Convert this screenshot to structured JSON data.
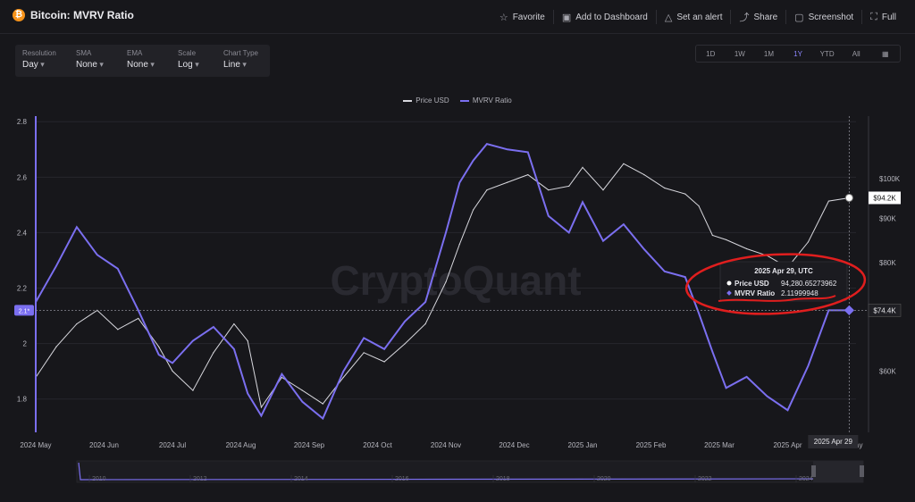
{
  "header": {
    "title": "Bitcoin: MVRV Ratio",
    "btc_glyph": "₿",
    "actions": [
      {
        "label": "Favorite",
        "icon": "star-icon",
        "glyph": "☆"
      },
      {
        "label": "Add to Dashboard",
        "icon": "dashboard-icon",
        "glyph": "▣"
      },
      {
        "label": "Set an alert",
        "icon": "bell-icon",
        "glyph": "△"
      },
      {
        "label": "Share",
        "icon": "share-icon",
        "glyph": "⤴"
      },
      {
        "label": "Screenshot",
        "icon": "camera-icon",
        "glyph": "▢"
      },
      {
        "label": "Full",
        "icon": "fullscreen-icon",
        "glyph": "⛶"
      }
    ]
  },
  "controls": [
    {
      "label": "Resolution",
      "value": "Day"
    },
    {
      "label": "SMA",
      "value": "None"
    },
    {
      "label": "EMA",
      "value": "None"
    },
    {
      "label": "Scale",
      "value": "Log"
    },
    {
      "label": "Chart Type",
      "value": "Line"
    }
  ],
  "ranges": [
    "1D",
    "1W",
    "1M",
    "1Y",
    "YTD",
    "All"
  ],
  "active_range": "1Y",
  "chart_data": {
    "type": "line",
    "watermark": "CryptoQuant",
    "colors": {
      "price": "#d8d8de",
      "mvrv": "#7b6ff0",
      "annotation": "#e01e1e",
      "grid": "#26262c"
    },
    "legend_placement": "top-center",
    "legend": [
      "Price USD",
      "MVRV Ratio"
    ],
    "y_left": {
      "min": 1.68,
      "max": 2.82,
      "ticks": [
        "2.8",
        "2.6",
        "2.4",
        "2.2",
        "2",
        "1.8"
      ],
      "tick_values": [
        2.8,
        2.6,
        2.4,
        2.2,
        2.0,
        1.8
      ]
    },
    "y_right": {
      "scale": "log",
      "min": 51000,
      "max": 118000,
      "ticks": [
        "$100K",
        "$90K",
        "$80K",
        "$70K",
        "$60K"
      ],
      "tick_values": [
        100000,
        90000,
        80000,
        70000,
        60000
      ]
    },
    "x_ticks": [
      "2024 May",
      "2024 Jun",
      "2024 Jul",
      "2024 Aug",
      "2024 Sep",
      "2024 Oct",
      "2024 Nov",
      "2024 Dec",
      "2025 Jan",
      "2025 Feb",
      "2025 Mar",
      "2025 Apr",
      "May"
    ],
    "x_tick_pos": [
      0,
      1,
      2,
      3,
      4,
      5,
      6,
      7,
      8,
      9,
      10,
      11,
      12
    ],
    "price_series": {
      "name": "Price USD",
      "x": [
        0,
        0.3,
        0.6,
        0.9,
        1.2,
        1.5,
        1.8,
        2.0,
        2.3,
        2.6,
        2.9,
        3.1,
        3.3,
        3.6,
        3.9,
        4.2,
        4.5,
        4.8,
        5.1,
        5.4,
        5.7,
        6.0,
        6.2,
        6.4,
        6.6,
        6.9,
        7.2,
        7.5,
        7.8,
        8.0,
        8.3,
        8.6,
        8.9,
        9.2,
        9.5,
        9.7,
        9.9,
        10.1,
        10.4,
        10.7,
        11.0,
        11.3,
        11.6,
        11.9
      ],
      "y": [
        59000,
        64000,
        68000,
        70500,
        67000,
        69000,
        64000,
        60000,
        57000,
        63000,
        68000,
        65000,
        54500,
        59000,
        57000,
        55000,
        59000,
        63000,
        61500,
        64500,
        68000,
        76000,
        84000,
        92000,
        97000,
        99000,
        101000,
        97000,
        98000,
        103000,
        97000,
        104000,
        101000,
        97500,
        96000,
        93000,
        86000,
        85000,
        83000,
        81500,
        79000,
        84500,
        94200,
        95000
      ]
    },
    "mvrv_series": {
      "name": "MVRV Ratio",
      "x": [
        0,
        0.3,
        0.6,
        0.9,
        1.2,
        1.5,
        1.8,
        2.0,
        2.3,
        2.6,
        2.9,
        3.1,
        3.3,
        3.6,
        3.9,
        4.2,
        4.5,
        4.8,
        5.1,
        5.4,
        5.7,
        6.0,
        6.2,
        6.4,
        6.6,
        6.9,
        7.2,
        7.5,
        7.8,
        8.0,
        8.3,
        8.6,
        8.9,
        9.2,
        9.5,
        9.7,
        9.9,
        10.1,
        10.4,
        10.7,
        11.0,
        11.3,
        11.6,
        11.9
      ],
      "y": [
        2.15,
        2.28,
        2.42,
        2.32,
        2.27,
        2.12,
        1.96,
        1.93,
        2.01,
        2.06,
        1.98,
        1.82,
        1.74,
        1.89,
        1.79,
        1.73,
        1.9,
        2.02,
        1.98,
        2.08,
        2.15,
        2.4,
        2.58,
        2.66,
        2.72,
        2.7,
        2.69,
        2.46,
        2.4,
        2.51,
        2.37,
        2.43,
        2.34,
        2.26,
        2.24,
        2.11,
        1.97,
        1.84,
        1.88,
        1.81,
        1.76,
        1.92,
        2.12,
        2.12
      ]
    },
    "crosshair": {
      "x": 11.9,
      "mvrv": 2.12,
      "price": 94280
    },
    "tooltip": {
      "date": "2025 Apr 29, UTC",
      "rows": [
        {
          "label": "Price USD",
          "value": "94,280.65273962"
        },
        {
          "label": "MVRV Ratio",
          "value": "2.11999948"
        }
      ]
    },
    "badges": {
      "left": "2.1*",
      "right_crosshair": "$74.4K",
      "right_price": "$94.2K",
      "bottom": "2025 Apr 29"
    },
    "navigator": {
      "labels": [
        "2010",
        "2012",
        "2014",
        "2016",
        "2018",
        "2020",
        "2022",
        "2024"
      ]
    }
  }
}
